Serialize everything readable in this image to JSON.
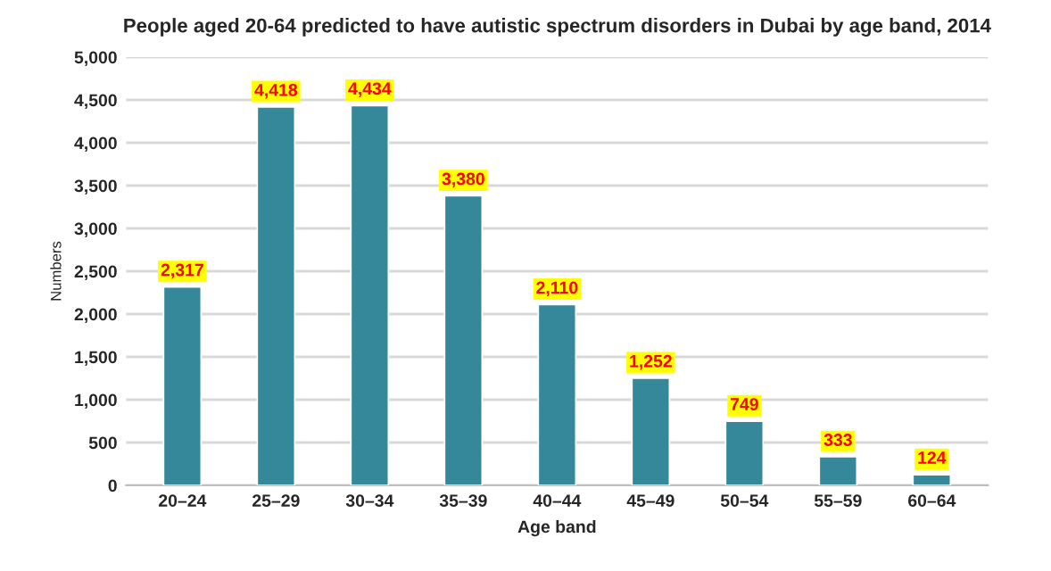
{
  "chart_data": {
    "type": "bar",
    "title": "People aged 20-64 predicted to have autistic spectrum disorders in Dubai by age band, 2014",
    "xlabel": "Age band",
    "ylabel": "Numbers",
    "categories": [
      "20–24",
      "25–29",
      "30–34",
      "35–39",
      "40–44",
      "45–49",
      "50–54",
      "55–59",
      "60–64"
    ],
    "values": [
      2317,
      4418,
      4434,
      3380,
      2110,
      1252,
      749,
      333,
      124
    ],
    "color": "#35879a",
    "value_labels": [
      "2,317",
      "4,418",
      "4,434",
      "3,380",
      "2,110",
      "1,252",
      "749",
      "333",
      "124"
    ],
    "ylim": [
      0,
      5000
    ],
    "yticks": [
      {
        "value": 0,
        "label": "0"
      },
      {
        "value": 500,
        "label": "500"
      },
      {
        "value": 1000,
        "label": "1,000"
      },
      {
        "value": 1500,
        "label": "1,500"
      },
      {
        "value": 2000,
        "label": "2,000"
      },
      {
        "value": 2500,
        "label": "2,500"
      },
      {
        "value": 3000,
        "label": "3,000"
      },
      {
        "value": 3500,
        "label": "3,500"
      },
      {
        "value": 4000,
        "label": "4,000"
      },
      {
        "value": 4500,
        "label": "4,500"
      },
      {
        "value": 5000,
        "label": "5,000"
      }
    ],
    "grid": "y",
    "legend": false
  }
}
